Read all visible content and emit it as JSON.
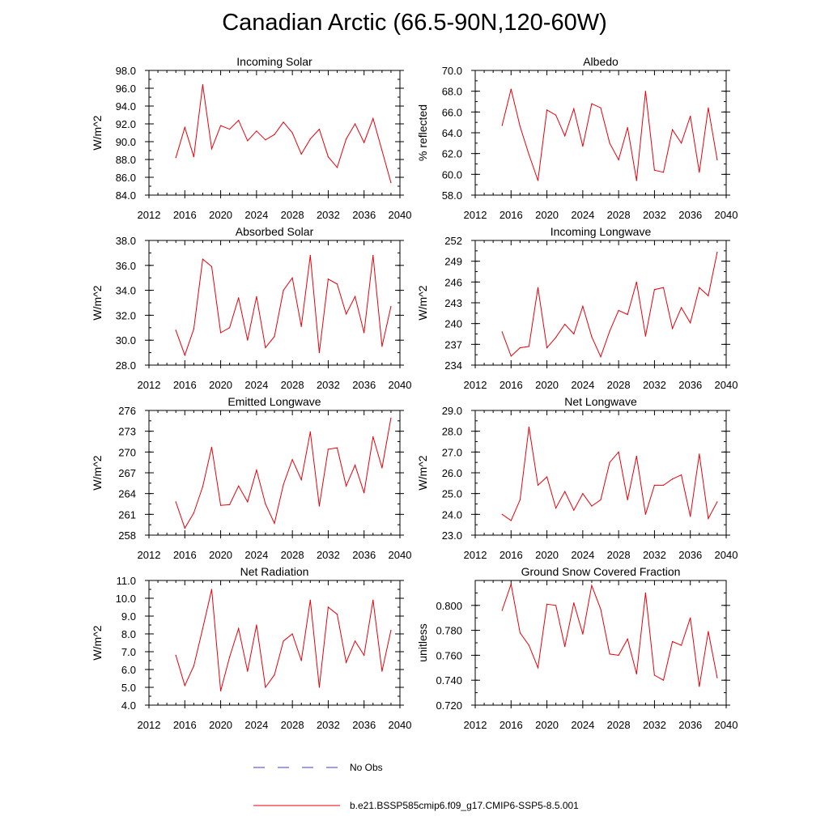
{
  "page": {
    "title": "Canadian Arctic (66.5-90N,120-60W)"
  },
  "legend": {
    "obs_label": "No Obs",
    "obs_color": "#3b3bd1",
    "model_label": "b.e21.BSSP585cmip6.f09_g17.CMIP6-SSP5-8.5.001",
    "model_color": "#e8000b"
  },
  "chart_data": [
    {
      "type": "line",
      "title": "Incoming Solar",
      "xlabel": "",
      "ylabel": "W/m^2",
      "xlim": [
        2012,
        2040
      ],
      "ylim": [
        84.0,
        98.0
      ],
      "xticks": [
        2012,
        2016,
        2020,
        2024,
        2028,
        2032,
        2036,
        2040
      ],
      "yticks": [
        "84.0",
        "86.0",
        "88.0",
        "90.0",
        "92.0",
        "94.0",
        "96.0",
        "98.0"
      ],
      "x": [
        2015,
        2016,
        2017,
        2018,
        2019,
        2020,
        2021,
        2022,
        2023,
        2024,
        2025,
        2026,
        2027,
        2028,
        2029,
        2030,
        2031,
        2032,
        2033,
        2034,
        2035,
        2036,
        2037,
        2038,
        2039
      ],
      "series": [
        {
          "name": "b.e21.BSSP585cmip6.f09_g17.CMIP6-SSP5-8.5.001",
          "values": [
            88.2,
            91.6,
            88.3,
            96.4,
            89.2,
            91.8,
            91.4,
            92.4,
            90.1,
            91.2,
            90.2,
            90.8,
            92.2,
            91.0,
            88.6,
            90.3,
            91.4,
            88.3,
            87.1,
            90.3,
            92.0,
            89.9,
            92.6,
            89.0,
            85.4
          ]
        }
      ]
    },
    {
      "type": "line",
      "title": "Albedo",
      "xlabel": "",
      "ylabel": "% reflected",
      "xlim": [
        2012,
        2040
      ],
      "ylim": [
        58.0,
        70.0
      ],
      "xticks": [
        2012,
        2016,
        2020,
        2024,
        2028,
        2032,
        2036,
        2040
      ],
      "yticks": [
        "58.0",
        "60.0",
        "62.0",
        "64.0",
        "66.0",
        "68.0",
        "70.0"
      ],
      "x": [
        2015,
        2016,
        2017,
        2018,
        2019,
        2020,
        2021,
        2022,
        2023,
        2024,
        2025,
        2026,
        2027,
        2028,
        2029,
        2030,
        2031,
        2032,
        2033,
        2034,
        2035,
        2036,
        2037,
        2038,
        2039
      ],
      "series": [
        {
          "name": "b.e21.BSSP585cmip6.f09_g17.CMIP6-SSP5-8.5.001",
          "values": [
            64.7,
            68.2,
            64.6,
            61.9,
            59.4,
            66.2,
            65.7,
            63.7,
            66.3,
            62.7,
            66.8,
            66.4,
            63.0,
            61.4,
            64.5,
            59.4,
            68.0,
            60.4,
            60.2,
            64.3,
            63.0,
            65.6,
            60.2,
            66.4,
            61.4
          ]
        }
      ]
    },
    {
      "type": "line",
      "title": "Absorbed Solar",
      "xlabel": "",
      "ylabel": "W/m^2",
      "xlim": [
        2012,
        2040
      ],
      "ylim": [
        28.0,
        38.0
      ],
      "xticks": [
        2012,
        2016,
        2020,
        2024,
        2028,
        2032,
        2036,
        2040
      ],
      "yticks": [
        "28.0",
        "30.0",
        "32.0",
        "34.0",
        "36.0",
        "38.0"
      ],
      "x": [
        2015,
        2016,
        2017,
        2018,
        2019,
        2020,
        2021,
        2022,
        2023,
        2024,
        2025,
        2026,
        2027,
        2028,
        2029,
        2030,
        2031,
        2032,
        2033,
        2034,
        2035,
        2036,
        2037,
        2038,
        2039
      ],
      "series": [
        {
          "name": "b.e21.BSSP585cmip6.f09_g17.CMIP6-SSP5-8.5.001",
          "values": [
            30.8,
            28.8,
            30.9,
            36.5,
            35.9,
            30.6,
            31.0,
            33.4,
            30.0,
            33.5,
            29.4,
            30.3,
            34.0,
            35.0,
            31.1,
            36.8,
            29.0,
            34.9,
            34.5,
            32.1,
            33.5,
            30.6,
            36.8,
            29.5,
            32.7
          ]
        }
      ]
    },
    {
      "type": "line",
      "title": "Incoming Longwave",
      "xlabel": "",
      "ylabel": "W/m^2",
      "xlim": [
        2012,
        2040
      ],
      "ylim": [
        234,
        252
      ],
      "xticks": [
        2012,
        2016,
        2020,
        2024,
        2028,
        2032,
        2036,
        2040
      ],
      "yticks": [
        "234",
        "237",
        "240",
        "243",
        "246",
        "249",
        "252"
      ],
      "x": [
        2015,
        2016,
        2017,
        2018,
        2019,
        2020,
        2021,
        2022,
        2023,
        2024,
        2025,
        2026,
        2027,
        2028,
        2029,
        2030,
        2031,
        2032,
        2033,
        2034,
        2035,
        2036,
        2037,
        2038,
        2039
      ],
      "series": [
        {
          "name": "b.e21.BSSP585cmip6.f09_g17.CMIP6-SSP5-8.5.001",
          "values": [
            238.8,
            235.3,
            236.5,
            236.7,
            245.2,
            236.5,
            238.0,
            239.9,
            238.5,
            242.5,
            238.1,
            235.2,
            238.9,
            241.9,
            241.3,
            246.0,
            238.2,
            244.9,
            245.2,
            239.3,
            242.3,
            240.1,
            245.2,
            244.0,
            250.3
          ]
        }
      ]
    },
    {
      "type": "line",
      "title": "Emitted Longwave",
      "xlabel": "",
      "ylabel": "W/m^2",
      "xlim": [
        2012,
        2040
      ],
      "ylim": [
        258,
        276
      ],
      "xticks": [
        2012,
        2016,
        2020,
        2024,
        2028,
        2032,
        2036,
        2040
      ],
      "yticks": [
        "258",
        "261",
        "264",
        "267",
        "270",
        "273",
        "276"
      ],
      "x": [
        2015,
        2016,
        2017,
        2018,
        2019,
        2020,
        2021,
        2022,
        2023,
        2024,
        2025,
        2026,
        2027,
        2028,
        2029,
        2030,
        2031,
        2032,
        2033,
        2034,
        2035,
        2036,
        2037,
        2038,
        2039
      ],
      "series": [
        {
          "name": "b.e21.BSSP585cmip6.f09_g17.CMIP6-SSP5-8.5.001",
          "values": [
            262.8,
            259.0,
            261.2,
            265.0,
            270.7,
            262.3,
            262.4,
            265.1,
            262.8,
            267.4,
            262.5,
            259.7,
            265.3,
            268.9,
            266.0,
            272.9,
            262.2,
            270.4,
            270.6,
            265.1,
            268.1,
            264.1,
            272.2,
            267.7,
            274.9
          ]
        }
      ]
    },
    {
      "type": "line",
      "title": "Net Longwave",
      "xlabel": "",
      "ylabel": "W/m^2",
      "xlim": [
        2012,
        2040
      ],
      "ylim": [
        23.0,
        29.0
      ],
      "xticks": [
        2012,
        2016,
        2020,
        2024,
        2028,
        2032,
        2036,
        2040
      ],
      "yticks": [
        "23.0",
        "24.0",
        "25.0",
        "26.0",
        "27.0",
        "28.0",
        "29.0"
      ],
      "x": [
        2015,
        2016,
        2017,
        2018,
        2019,
        2020,
        2021,
        2022,
        2023,
        2024,
        2025,
        2026,
        2027,
        2028,
        2029,
        2030,
        2031,
        2032,
        2033,
        2034,
        2035,
        2036,
        2037,
        2038,
        2039
      ],
      "series": [
        {
          "name": "b.e21.BSSP585cmip6.f09_g17.CMIP6-SSP5-8.5.001",
          "values": [
            24.0,
            23.7,
            24.7,
            28.2,
            25.4,
            25.8,
            24.3,
            25.1,
            24.2,
            25.0,
            24.4,
            24.7,
            26.5,
            27.0,
            24.7,
            26.8,
            24.0,
            25.4,
            25.4,
            25.7,
            25.9,
            23.9,
            26.9,
            23.8,
            24.6
          ]
        }
      ]
    },
    {
      "type": "line",
      "title": "Net Radiation",
      "xlabel": "",
      "ylabel": "W/m^2",
      "xlim": [
        2012,
        2040
      ],
      "ylim": [
        4.0,
        11.0
      ],
      "xticks": [
        2012,
        2016,
        2020,
        2024,
        2028,
        2032,
        2036,
        2040
      ],
      "yticks": [
        "4.0",
        "5.0",
        "6.0",
        "7.0",
        "8.0",
        "9.0",
        "10.0",
        "11.0"
      ],
      "x": [
        2015,
        2016,
        2017,
        2018,
        2019,
        2020,
        2021,
        2022,
        2023,
        2024,
        2025,
        2026,
        2027,
        2028,
        2029,
        2030,
        2031,
        2032,
        2033,
        2034,
        2035,
        2036,
        2037,
        2038,
        2039
      ],
      "series": [
        {
          "name": "b.e21.BSSP585cmip6.f09_g17.CMIP6-SSP5-8.5.001",
          "values": [
            6.8,
            5.1,
            6.2,
            8.3,
            10.5,
            4.8,
            6.7,
            8.3,
            5.9,
            8.5,
            5.0,
            5.7,
            7.6,
            8.0,
            6.5,
            9.9,
            5.0,
            9.5,
            9.1,
            6.4,
            7.6,
            6.8,
            9.9,
            5.9,
            8.2
          ]
        }
      ]
    },
    {
      "type": "line",
      "title": "Ground Snow Covered Fraction",
      "xlabel": "",
      "ylabel": "unitless",
      "xlim": [
        2012,
        2040
      ],
      "ylim": [
        0.72,
        0.82
      ],
      "xticks": [
        2012,
        2016,
        2020,
        2024,
        2028,
        2032,
        2036,
        2040
      ],
      "yticks": [
        "0.720",
        "0.740",
        "0.760",
        "0.780",
        "0.800"
      ],
      "x": [
        2015,
        2016,
        2017,
        2018,
        2019,
        2020,
        2021,
        2022,
        2023,
        2024,
        2025,
        2026,
        2027,
        2028,
        2029,
        2030,
        2031,
        2032,
        2033,
        2034,
        2035,
        2036,
        2037,
        2038,
        2039
      ],
      "series": [
        {
          "name": "b.e21.BSSP585cmip6.f09_g17.CMIP6-SSP5-8.5.001",
          "values": [
            0.796,
            0.817,
            0.778,
            0.768,
            0.75,
            0.801,
            0.8,
            0.767,
            0.802,
            0.777,
            0.816,
            0.797,
            0.761,
            0.76,
            0.773,
            0.745,
            0.81,
            0.744,
            0.74,
            0.771,
            0.768,
            0.79,
            0.735,
            0.779,
            0.742
          ]
        }
      ]
    }
  ]
}
